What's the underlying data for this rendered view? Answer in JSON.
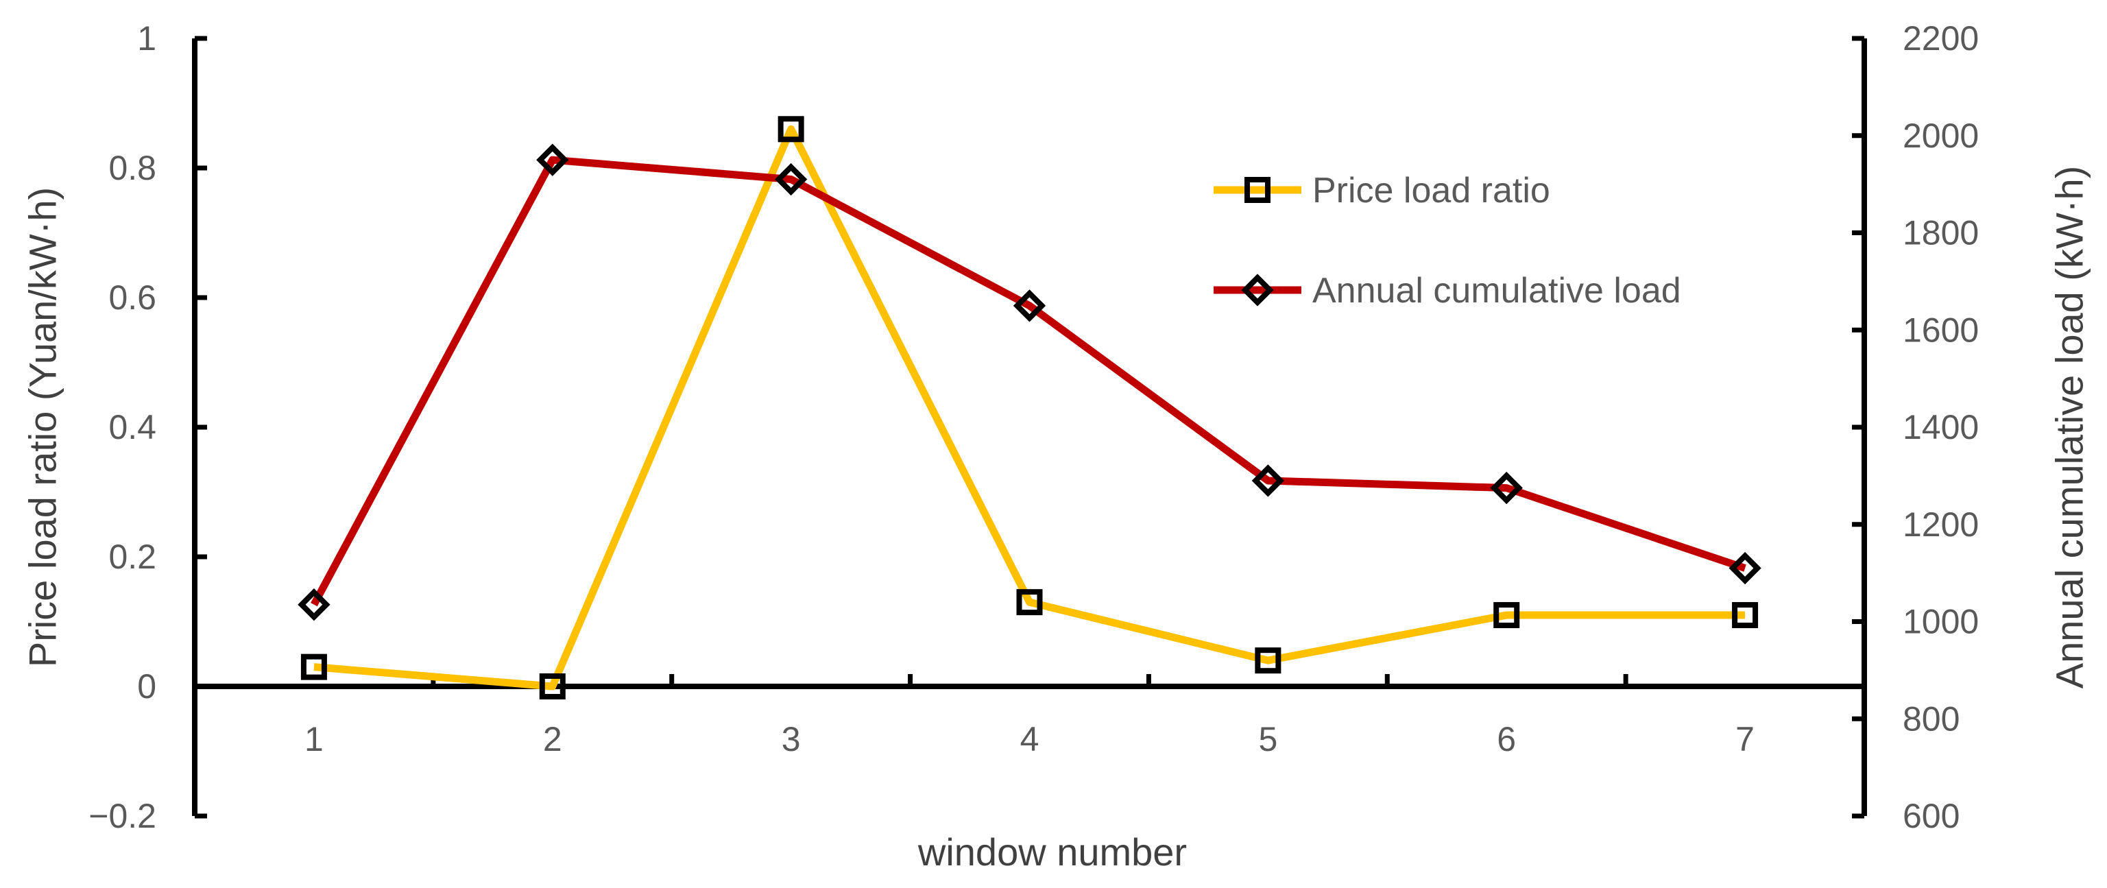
{
  "chart_data": {
    "type": "line",
    "title": "",
    "categories": [
      1,
      2,
      3,
      4,
      5,
      6,
      7
    ],
    "series": [
      {
        "name": "Price load ratio",
        "axis": "left",
        "color": "#FFC000",
        "marker": "square",
        "marker_outline": "#000000",
        "values": [
          0.03,
          0.0,
          0.86,
          0.13,
          0.04,
          0.11,
          0.11
        ]
      },
      {
        "name": "Annual cumulative load",
        "axis": "right",
        "color": "#C00000",
        "marker": "diamond",
        "marker_outline": "#000000",
        "values": [
          1035,
          1950,
          1910,
          1650,
          1290,
          1275,
          1110
        ]
      }
    ],
    "left_axis": {
      "label": "Price load ratio (Yuan/kW·h)",
      "min": -0.2,
      "max": 1.0,
      "ticks": [
        1,
        0.8,
        0.6,
        0.4,
        0.2,
        0,
        -0.2
      ],
      "tick_labels": [
        "1",
        "0.8",
        "0.6",
        "0.4",
        "0.2",
        "0",
        "−0.2"
      ]
    },
    "right_axis": {
      "label": "Annual cumulative load (kW·h)",
      "min": 600,
      "max": 2200,
      "ticks": [
        2200,
        2000,
        1800,
        1600,
        1400,
        1200,
        1000,
        800,
        600
      ],
      "tick_labels": [
        "2200",
        "2000",
        "1800",
        "1600",
        "1400",
        "1200",
        "1000",
        "800",
        "600"
      ]
    },
    "x_axis": {
      "label": "window number",
      "tick_labels": [
        "1",
        "2",
        "3",
        "4",
        "5",
        "6",
        "7"
      ]
    },
    "legend_labels": [
      "Price load ratio",
      " Annual cumulative load"
    ],
    "grid": false,
    "legend_position": "upper-right-inside",
    "style": {
      "axis_color": "#000000",
      "tick_label_color": "#595959",
      "axis_title_color": "#404040",
      "background": "#ffffff"
    }
  }
}
